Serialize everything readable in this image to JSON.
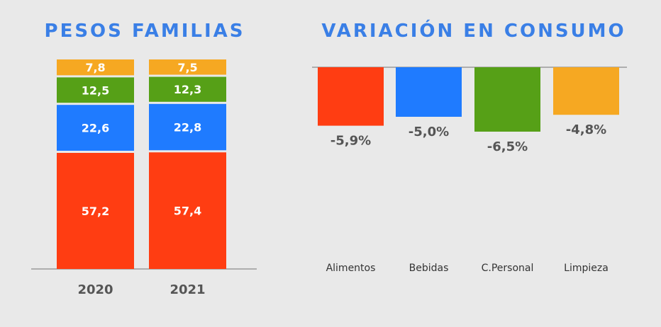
{
  "colors": {
    "title": "#3a7fe6",
    "background": "#e9e9e9",
    "alimentos": "#ff3d12",
    "bebidas": "#1f7bff",
    "cpersonal": "#56a017",
    "limpieza": "#f6a822",
    "axis": "#9a9a9a"
  },
  "chart_data": [
    {
      "type": "bar",
      "stacked": true,
      "title": "PESOS FAMILIAS",
      "categories": [
        "2020",
        "2021"
      ],
      "series": [
        {
          "name": "Alimentos",
          "color_key": "alimentos",
          "values": [
            57.2,
            57.4
          ],
          "labels": [
            "57,2",
            "57,4"
          ]
        },
        {
          "name": "Bebidas",
          "color_key": "bebidas",
          "values": [
            22.6,
            22.8
          ],
          "labels": [
            "22,6",
            "22,8"
          ]
        },
        {
          "name": "C.Personal",
          "color_key": "cpersonal",
          "values": [
            12.5,
            12.3
          ],
          "labels": [
            "12,5",
            "12,3"
          ]
        },
        {
          "name": "Limpieza",
          "color_key": "limpieza",
          "values": [
            7.8,
            7.5
          ],
          "labels": [
            "7,8",
            "7,5"
          ]
        }
      ],
      "ylim": [
        0,
        100
      ]
    },
    {
      "type": "bar",
      "title": "VARIACIÓN EN CONSUMO",
      "categories": [
        "Alimentos",
        "Bebidas",
        "C.Personal",
        "Limpieza"
      ],
      "color_keys": [
        "alimentos",
        "bebidas",
        "cpersonal",
        "limpieza"
      ],
      "values": [
        -5.9,
        -5.0,
        -6.5,
        -4.8
      ],
      "labels": [
        "-5,9%",
        "-5,0%",
        "-6,5%",
        "-4,8%"
      ],
      "ylim": [
        -20,
        0
      ]
    }
  ]
}
